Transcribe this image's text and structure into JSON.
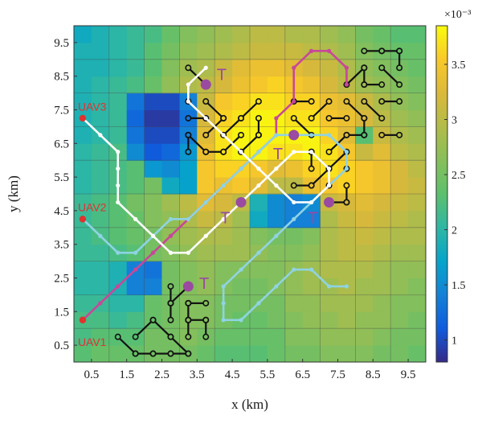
{
  "chart_data": {
    "type": "heatmap",
    "xlabel": "x (km)",
    "ylabel": "y (km)",
    "x_ticks": [
      "0.5",
      "1.5",
      "2.5",
      "3.5",
      "4.5",
      "5.5",
      "6.5",
      "7.5",
      "8.5",
      "9.5"
    ],
    "y_ticks": [
      "0.5",
      "1.5",
      "2.5",
      "3.5",
      "4.5",
      "5.5",
      "6.5",
      "7.5",
      "8.5",
      "9.5"
    ],
    "xlim": [
      0,
      10
    ],
    "ylim": [
      0,
      10
    ],
    "grid": true,
    "colorbar": {
      "exponent_label": "×10⁻³",
      "range": [
        0.8,
        3.85
      ],
      "ticks": [
        "1",
        "1.5",
        "2",
        "2.5",
        "3",
        "3.5"
      ],
      "tick_values": [
        1,
        1.5,
        2,
        2.5,
        3,
        3.5
      ],
      "colormap": "parula"
    },
    "cells": [
      [
        2.3,
        2.4,
        2.4,
        2.4,
        2.5,
        2.5,
        2.5,
        2.4,
        2.3,
        2.3,
        2.3,
        2.4,
        2.5,
        2.5,
        2.6,
        2.6,
        2.6,
        2.5,
        2.5,
        2.4
      ],
      [
        2.2,
        2.3,
        2.3,
        2.3,
        2.5,
        2.5,
        2.6,
        2.5,
        2.4,
        2.4,
        2.4,
        2.4,
        2.6,
        2.6,
        2.7,
        2.7,
        2.7,
        2.6,
        2.5,
        2.5
      ],
      [
        2.2,
        2.2,
        2.1,
        2.2,
        2.4,
        2.5,
        2.6,
        2.6,
        2.5,
        2.4,
        2.4,
        2.5,
        2.6,
        2.7,
        2.7,
        2.8,
        2.7,
        2.7,
        2.6,
        2.5
      ],
      [
        2.1,
        2.1,
        2.0,
        2.0,
        2.4,
        2.5,
        2.6,
        2.6,
        2.5,
        2.5,
        2.5,
        2.5,
        2.7,
        2.7,
        2.8,
        2.8,
        2.8,
        2.7,
        2.6,
        2.6
      ],
      [
        2.0,
        2.0,
        1.9,
        1.4,
        1.4,
        2.5,
        2.6,
        2.7,
        2.6,
        2.5,
        2.5,
        2.6,
        2.7,
        2.8,
        2.8,
        2.9,
        2.8,
        2.8,
        2.7,
        2.6
      ],
      [
        2.0,
        2.0,
        1.9,
        1.4,
        1.3,
        2.5,
        2.6,
        2.7,
        2.6,
        2.6,
        2.6,
        2.6,
        2.7,
        2.8,
        2.9,
        2.9,
        2.9,
        2.8,
        2.7,
        2.7
      ],
      [
        2.1,
        2.1,
        2.2,
        2.3,
        2.5,
        2.6,
        2.7,
        2.8,
        2.8,
        2.8,
        2.7,
        2.6,
        2.6,
        2.7,
        2.9,
        3.0,
        3.0,
        2.9,
        2.8,
        2.8
      ],
      [
        2.1,
        2.2,
        2.3,
        2.4,
        2.5,
        2.7,
        2.8,
        2.9,
        2.9,
        2.8,
        2.6,
        2.5,
        2.5,
        2.6,
        2.9,
        3.0,
        3.1,
        3.0,
        2.9,
        2.9
      ],
      [
        2.1,
        2.2,
        2.3,
        2.4,
        2.6,
        2.7,
        2.9,
        3.1,
        3.0,
        2.8,
        1.8,
        1.5,
        1.4,
        1.4,
        2.9,
        3.1,
        3.2,
        3.1,
        3.0,
        2.9
      ],
      [
        2.1,
        2.2,
        2.3,
        2.5,
        2.6,
        2.8,
        3.0,
        3.3,
        3.2,
        3.0,
        1.9,
        1.5,
        1.4,
        1.5,
        3.1,
        3.2,
        3.3,
        3.2,
        3.1,
        3.0
      ],
      [
        2.0,
        2.1,
        2.2,
        2.3,
        2.5,
        1.8,
        1.7,
        3.5,
        3.4,
        3.5,
        3.3,
        3.0,
        3.0,
        3.4,
        3.5,
        3.6,
        3.5,
        3.4,
        3.2,
        3.1
      ],
      [
        2.0,
        2.1,
        2.2,
        2.3,
        1.6,
        1.5,
        1.7,
        3.5,
        3.6,
        3.6,
        3.5,
        3.3,
        3.4,
        3.6,
        3.7,
        3.6,
        3.5,
        3.4,
        3.2,
        3.0
      ],
      [
        2.0,
        2.1,
        2.2,
        1.5,
        1.1,
        1.2,
        1.6,
        3.4,
        3.7,
        3.8,
        3.8,
        3.7,
        3.7,
        3.8,
        3.7,
        3.5,
        3.1,
        3.3,
        3.0,
        2.9
      ],
      [
        1.9,
        2.0,
        2.1,
        1.3,
        1.0,
        1.0,
        1.4,
        3.3,
        3.7,
        3.8,
        3.8,
        3.8,
        3.8,
        3.8,
        3.6,
        3.3,
        2.3,
        3.1,
        2.9,
        2.8
      ],
      [
        1.9,
        2.0,
        2.1,
        1.2,
        0.9,
        0.9,
        1.3,
        3.2,
        3.6,
        3.7,
        3.8,
        3.8,
        3.7,
        3.7,
        3.5,
        3.4,
        3.2,
        3.0,
        2.8,
        2.7
      ],
      [
        1.9,
        2.0,
        2.1,
        1.3,
        1.0,
        1.0,
        1.4,
        3.1,
        3.5,
        3.6,
        3.7,
        3.7,
        3.6,
        3.6,
        3.4,
        3.3,
        3.1,
        2.9,
        2.7,
        2.6
      ],
      [
        1.9,
        2.0,
        2.1,
        2.2,
        2.4,
        2.7,
        2.9,
        3.0,
        3.2,
        3.4,
        3.5,
        3.6,
        3.5,
        3.4,
        3.2,
        3.0,
        2.8,
        2.7,
        2.6,
        2.5
      ],
      [
        1.9,
        1.9,
        2.0,
        2.1,
        2.3,
        2.6,
        2.8,
        2.9,
        3.1,
        3.3,
        3.4,
        3.4,
        3.3,
        3.2,
        3.1,
        2.9,
        2.7,
        2.6,
        2.5,
        2.4
      ],
      [
        1.9,
        1.9,
        2.0,
        2.1,
        2.3,
        2.5,
        2.7,
        2.8,
        2.9,
        3.0,
        3.1,
        3.1,
        3.1,
        3.0,
        2.9,
        2.8,
        2.6,
        2.5,
        2.4,
        2.4
      ],
      [
        1.8,
        1.9,
        2.0,
        2.1,
        2.2,
        2.4,
        2.6,
        2.7,
        2.8,
        2.9,
        3.0,
        3.0,
        2.9,
        2.9,
        2.8,
        2.7,
        2.5,
        2.4,
        2.3,
        2.3
      ]
    ],
    "cells_row_order": "bottom-to-top, 0.5 km resolution",
    "uav_paths": [
      {
        "name": "UAV1",
        "color": "#c8479a",
        "points": [
          [
            0.25,
            1.25
          ],
          [
            0.75,
            1.75
          ],
          [
            1.25,
            2.25
          ],
          [
            1.75,
            2.75
          ],
          [
            2.25,
            3.25
          ],
          [
            2.75,
            3.75
          ],
          [
            3.25,
            4.25
          ],
          [
            3.75,
            4.75
          ],
          [
            4.25,
            5.25
          ],
          [
            4.75,
            5.75
          ],
          [
            5.25,
            6.25
          ],
          [
            5.75,
            6.75
          ],
          [
            5.75,
            7.25
          ],
          [
            6.25,
            7.75
          ],
          [
            6.25,
            8.75
          ],
          [
            6.75,
            9.25
          ],
          [
            7.25,
            9.25
          ],
          [
            7.75,
            8.75
          ],
          [
            7.75,
            8.25
          ]
        ]
      },
      {
        "name": "UAV2",
        "color": "#8fd3e3",
        "points": [
          [
            0.25,
            4.25
          ],
          [
            0.75,
            3.75
          ],
          [
            1.25,
            3.25
          ],
          [
            1.75,
            3.25
          ],
          [
            2.25,
            3.75
          ],
          [
            2.75,
            4.25
          ],
          [
            3.25,
            4.25
          ],
          [
            3.75,
            4.75
          ],
          [
            4.25,
            5.25
          ],
          [
            4.75,
            5.75
          ],
          [
            5.25,
            6.25
          ],
          [
            5.75,
            6.75
          ],
          [
            6.25,
            6.75
          ],
          [
            6.75,
            6.75
          ],
          [
            7.25,
            6.75
          ],
          [
            7.75,
            6.25
          ],
          [
            7.75,
            5.75
          ],
          [
            7.25,
            5.25
          ],
          [
            6.75,
            4.75
          ],
          [
            6.25,
            4.25
          ],
          [
            5.75,
            3.75
          ],
          [
            5.25,
            3.25
          ],
          [
            4.75,
            2.75
          ],
          [
            4.25,
            2.25
          ],
          [
            4.25,
            1.75
          ],
          [
            4.25,
            1.25
          ],
          [
            4.75,
            1.25
          ],
          [
            5.25,
            1.75
          ],
          [
            5.75,
            2.25
          ],
          [
            6.25,
            2.75
          ],
          [
            6.75,
            2.75
          ],
          [
            7.25,
            2.25
          ],
          [
            7.75,
            2.25
          ]
        ]
      },
      {
        "name": "UAV3",
        "color": "#ffffff",
        "points": [
          [
            0.25,
            7.25
          ],
          [
            0.75,
            6.75
          ],
          [
            1.25,
            6.25
          ],
          [
            1.25,
            5.75
          ],
          [
            1.25,
            5.25
          ],
          [
            1.25,
            4.75
          ],
          [
            1.75,
            4.25
          ],
          [
            2.25,
            3.75
          ],
          [
            2.75,
            3.25
          ],
          [
            3.25,
            3.25
          ],
          [
            3.75,
            3.75
          ],
          [
            4.25,
            4.25
          ],
          [
            4.75,
            4.75
          ],
          [
            5.25,
            5.25
          ],
          [
            5.75,
            5.75
          ],
          [
            6.25,
            6.25
          ],
          [
            6.75,
            6.25
          ],
          [
            7.25,
            5.75
          ],
          [
            7.25,
            5.25
          ],
          [
            6.75,
            4.75
          ],
          [
            6.25,
            4.75
          ],
          [
            5.75,
            5.25
          ],
          [
            5.25,
            5.75
          ],
          [
            4.75,
            6.25
          ],
          [
            4.25,
            6.75
          ],
          [
            3.75,
            7.25
          ],
          [
            3.25,
            7.75
          ],
          [
            3.25,
            8.25
          ],
          [
            3.75,
            8.75
          ]
        ]
      }
    ],
    "uav_labels": [
      {
        "text": "UAV1",
        "x": 0.25,
        "y": 0.6
      },
      {
        "text": "UAV2",
        "x": 0.25,
        "y": 4.6
      },
      {
        "text": "UAV3",
        "x": 0.25,
        "y": 7.6
      }
    ],
    "targets": [
      {
        "label": "T",
        "x": 3.75,
        "y": 8.25
      },
      {
        "label": "T",
        "x": 4.75,
        "y": 4.75
      },
      {
        "label": "T",
        "x": 6.25,
        "y": 6.75
      },
      {
        "label": "T",
        "x": 7.25,
        "y": 4.75
      },
      {
        "label": "T",
        "x": 3.25,
        "y": 2.25
      }
    ],
    "target_label_offsets": [
      [
        0.45,
        0.3
      ],
      [
        -0.45,
        -0.45
      ],
      [
        -0.45,
        -0.55
      ],
      [
        -0.45,
        -0.45
      ],
      [
        0.45,
        0.1
      ]
    ],
    "obstacle_segments": [
      [
        [
          1.25,
          0.75
        ],
        [
          1.75,
          0.25
        ]
      ],
      [
        [
          1.75,
          0.75
        ],
        [
          2.25,
          1.25
        ]
      ],
      [
        [
          2.25,
          1.25
        ],
        [
          2.75,
          0.75
        ]
      ],
      [
        [
          2.25,
          0.25
        ],
        [
          2.75,
          0.25
        ]
      ],
      [
        [
          1.75,
          0.25
        ],
        [
          2.25,
          0.25
        ]
      ],
      [
        [
          2.75,
          0.75
        ],
        [
          3.25,
          0.25
        ]
      ],
      [
        [
          2.75,
          1.25
        ],
        [
          2.75,
          1.75
        ]
      ],
      [
        [
          3.25,
          0.75
        ],
        [
          3.25,
          1.25
        ]
      ],
      [
        [
          3.25,
          1.25
        ],
        [
          3.75,
          1.25
        ]
      ],
      [
        [
          2.75,
          1.75
        ],
        [
          3.25,
          2.25
        ]
      ],
      [
        [
          3.25,
          1.75
        ],
        [
          3.75,
          1.75
        ]
      ],
      [
        [
          3.75,
          0.75
        ],
        [
          3.75,
          1.25
        ]
      ],
      [
        [
          2.75,
          0.25
        ],
        [
          3.25,
          0.25
        ]
      ],
      [
        [
          3.25,
          1.75
        ],
        [
          3.25,
          1.25
        ]
      ],
      [
        [
          2.75,
          2.25
        ],
        [
          2.75,
          1.75
        ]
      ],
      [
        [
          3.25,
          8.75
        ],
        [
          3.75,
          8.25
        ]
      ],
      [
        [
          3.25,
          7.75
        ],
        [
          3.75,
          7.25
        ]
      ],
      [
        [
          3.75,
          7.75
        ],
        [
          4.25,
          7.25
        ]
      ],
      [
        [
          3.25,
          6.75
        ],
        [
          3.75,
          6.25
        ]
      ],
      [
        [
          3.75,
          6.75
        ],
        [
          4.25,
          7.25
        ]
      ],
      [
        [
          4.25,
          6.75
        ],
        [
          4.75,
          7.25
        ]
      ],
      [
        [
          4.25,
          6.25
        ],
        [
          4.75,
          6.75
        ]
      ],
      [
        [
          4.75,
          6.25
        ],
        [
          5.25,
          6.75
        ]
      ],
      [
        [
          4.75,
          7.25
        ],
        [
          5.25,
          7.75
        ]
      ],
      [
        [
          5.25,
          7.25
        ],
        [
          5.25,
          6.75
        ]
      ],
      [
        [
          3.25,
          7.25
        ],
        [
          3.75,
          7.25
        ]
      ],
      [
        [
          3.75,
          6.25
        ],
        [
          4.25,
          6.25
        ]
      ],
      [
        [
          3.25,
          6.25
        ],
        [
          3.25,
          6.75
        ]
      ],
      [
        [
          6.25,
          7.25
        ],
        [
          6.75,
          6.75
        ]
      ],
      [
        [
          6.75,
          7.25
        ],
        [
          7.25,
          7.75
        ]
      ],
      [
        [
          7.25,
          7.25
        ],
        [
          7.75,
          7.25
        ]
      ],
      [
        [
          7.75,
          7.75
        ],
        [
          8.25,
          7.25
        ]
      ],
      [
        [
          7.75,
          8.25
        ],
        [
          8.25,
          8.75
        ]
      ],
      [
        [
          8.25,
          7.75
        ],
        [
          8.75,
          7.25
        ]
      ],
      [
        [
          8.25,
          8.25
        ],
        [
          8.25,
          8.75
        ]
      ],
      [
        [
          8.75,
          7.75
        ],
        [
          9.25,
          7.75
        ]
      ],
      [
        [
          8.75,
          6.75
        ],
        [
          9.25,
          6.75
        ]
      ],
      [
        [
          8.75,
          9.25
        ],
        [
          9.25,
          9.25
        ]
      ],
      [
        [
          8.75,
          8.75
        ],
        [
          9.25,
          8.25
        ]
      ],
      [
        [
          8.25,
          7.25
        ],
        [
          8.25,
          6.75
        ]
      ],
      [
        [
          7.75,
          6.75
        ],
        [
          8.25,
          6.75
        ]
      ],
      [
        [
          7.25,
          6.25
        ],
        [
          7.75,
          6.75
        ]
      ],
      [
        [
          6.75,
          6.25
        ],
        [
          7.25,
          5.75
        ]
      ],
      [
        [
          6.75,
          5.25
        ],
        [
          7.25,
          5.75
        ]
      ],
      [
        [
          6.75,
          5.75
        ],
        [
          6.75,
          6.25
        ]
      ],
      [
        [
          7.75,
          5.25
        ],
        [
          7.75,
          4.75
        ]
      ],
      [
        [
          7.25,
          4.75
        ],
        [
          7.75,
          4.75
        ]
      ],
      [
        [
          7.25,
          5.25
        ],
        [
          7.75,
          5.75
        ]
      ],
      [
        [
          6.25,
          7.75
        ],
        [
          6.75,
          7.75
        ]
      ],
      [
        [
          8.75,
          8.25
        ],
        [
          8.25,
          8.25
        ]
      ],
      [
        [
          8.25,
          9.25
        ],
        [
          8.75,
          9.25
        ]
      ],
      [
        [
          9.25,
          8.75
        ],
        [
          9.25,
          9.25
        ]
      ],
      [
        [
          7.75,
          6.25
        ],
        [
          7.25,
          5.75
        ]
      ],
      [
        [
          6.25,
          5.25
        ],
        [
          6.75,
          5.25
        ]
      ]
    ]
  }
}
